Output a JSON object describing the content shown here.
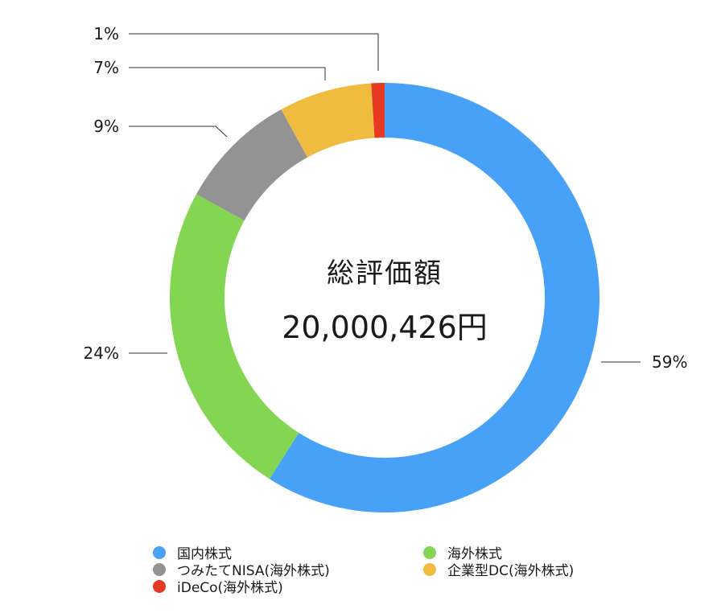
{
  "center": {
    "title": "総評価額",
    "value": "20,000,426円"
  },
  "chart_data": {
    "type": "pie",
    "variant": "donut",
    "categories": [
      "国内株式",
      "海外株式",
      "つみたてNISA(海外株式)",
      "企業型DC(海外株式)",
      "iDeCo(海外株式)"
    ],
    "values": [
      59,
      24,
      9,
      7,
      1
    ],
    "labels": [
      "59%",
      "24%",
      "9%",
      "7%",
      "1%"
    ],
    "colors": [
      "#47a2f7",
      "#84d652",
      "#939393",
      "#f0bc3f",
      "#e63a24"
    ],
    "legend_position": "bottom"
  },
  "legend": {
    "items": [
      {
        "label": "国内株式",
        "color": "#47a2f7"
      },
      {
        "label": "海外株式",
        "color": "#84d652"
      },
      {
        "label": "つみたてNISA(海外株式)",
        "color": "#939393"
      },
      {
        "label": "企業型DC(海外株式)",
        "color": "#f0bc3f"
      },
      {
        "label": "iDeCo(海外株式)",
        "color": "#e63a24"
      }
    ]
  }
}
